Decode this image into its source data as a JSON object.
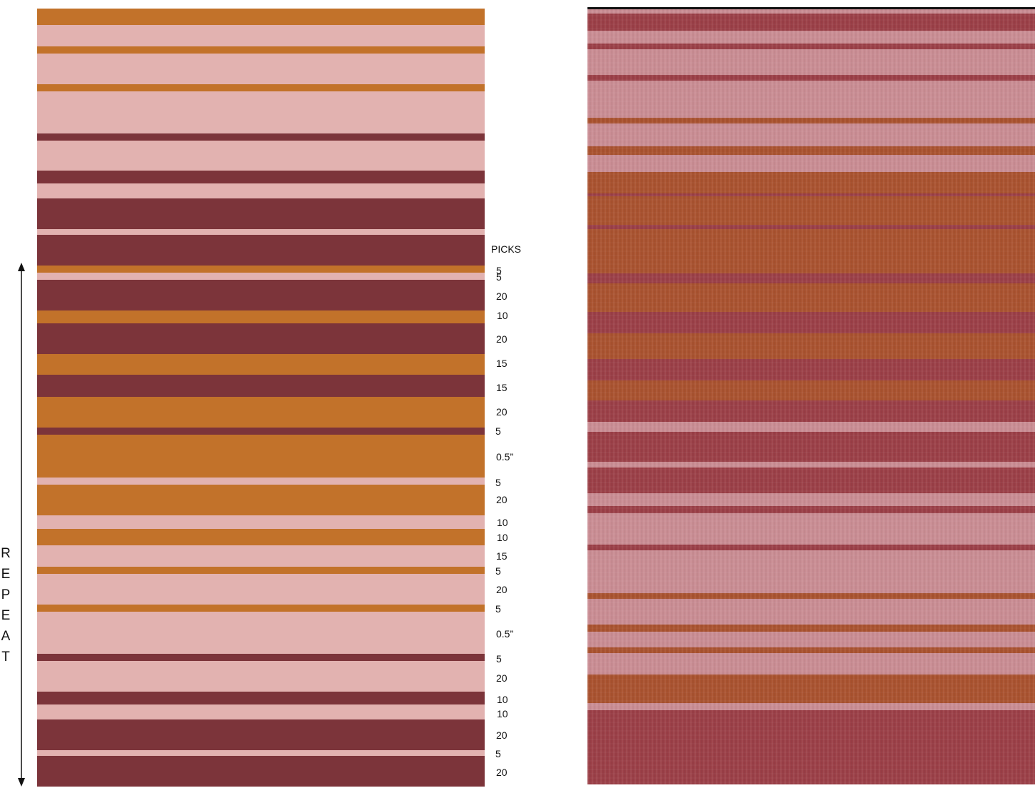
{
  "colors": {
    "orange": "#c2722a",
    "pink": "#e2b2b0",
    "maroon": "#7c343a",
    "fabric_base": "#9b3f47",
    "fabric_pink": "#c98c93",
    "fabric_orange": "#a9522f"
  },
  "labels": {
    "picks_header": "PICKS",
    "repeat_letters": [
      "R",
      "E",
      "P",
      "E",
      "A",
      "T"
    ]
  },
  "pick_counts": [
    "5",
    "5",
    "20",
    "10",
    "20",
    "15",
    "15",
    "20",
    "5",
    "0.5”",
    "5",
    "20",
    "10",
    "10",
    "15",
    "5",
    "20",
    "5",
    "0.5”",
    "5",
    "20",
    "10",
    "10",
    "20",
    "5",
    "20"
  ],
  "stripe_sequence": [
    {
      "color": "orange",
      "span": 23
    },
    {
      "color": "pink",
      "span": 30
    },
    {
      "color": "orange",
      "span": 10
    },
    {
      "color": "pink",
      "span": 43
    },
    {
      "color": "orange",
      "span": 10
    },
    {
      "color": "pink",
      "span": 59
    },
    {
      "color": "maroon",
      "span": 10
    },
    {
      "color": "pink",
      "span": 42
    },
    {
      "color": "maroon",
      "span": 18
    },
    {
      "color": "pink",
      "span": 21
    },
    {
      "color": "maroon",
      "span": 43
    },
    {
      "color": "pink",
      "span": 8
    },
    {
      "color": "maroon",
      "span": 43
    },
    {
      "color": "orange",
      "span": 10
    },
    {
      "color": "pink",
      "span": 10
    },
    {
      "color": "maroon",
      "span": 43
    },
    {
      "color": "orange",
      "span": 18
    },
    {
      "color": "maroon",
      "span": 43
    },
    {
      "color": "orange",
      "span": 29
    },
    {
      "color": "maroon",
      "span": 31
    },
    {
      "color": "orange",
      "span": 43
    },
    {
      "color": "maroon",
      "span": 10
    },
    {
      "color": "orange",
      "span": 60
    },
    {
      "color": "pink",
      "span": 10
    },
    {
      "color": "orange",
      "span": 43
    },
    {
      "color": "pink",
      "span": 19
    },
    {
      "color": "orange",
      "span": 23
    },
    {
      "color": "pink",
      "span": 30
    },
    {
      "color": "orange",
      "span": 10
    },
    {
      "color": "pink",
      "span": 43
    },
    {
      "color": "orange",
      "span": 10
    },
    {
      "color": "pink",
      "span": 59
    },
    {
      "color": "maroon",
      "span": 10
    },
    {
      "color": "pink",
      "span": 43
    },
    {
      "color": "maroon",
      "span": 18
    },
    {
      "color": "pink",
      "span": 21
    },
    {
      "color": "maroon",
      "span": 43
    },
    {
      "color": "pink",
      "span": 8
    },
    {
      "color": "maroon",
      "span": 43
    }
  ],
  "fabric_stripes": [
    {
      "color": "fabric_pink",
      "span": 6
    },
    {
      "color": "fabric_base",
      "span": 24
    },
    {
      "color": "fabric_pink",
      "span": 18
    },
    {
      "color": "fabric_base",
      "span": 8
    },
    {
      "color": "fabric_pink",
      "span": 36
    },
    {
      "color": "fabric_base",
      "span": 8
    },
    {
      "color": "fabric_pink",
      "span": 52
    },
    {
      "color": "fabric_orange",
      "span": 8
    },
    {
      "color": "fabric_pink",
      "span": 32
    },
    {
      "color": "fabric_orange",
      "span": 12
    },
    {
      "color": "fabric_pink",
      "span": 24
    },
    {
      "color": "fabric_orange",
      "span": 30
    },
    {
      "color": "fabric_base",
      "span": 4
    },
    {
      "color": "fabric_orange",
      "span": 40
    },
    {
      "color": "fabric_base",
      "span": 6
    },
    {
      "color": "fabric_orange",
      "span": 62
    },
    {
      "color": "fabric_base",
      "span": 14
    },
    {
      "color": "fabric_orange",
      "span": 40
    },
    {
      "color": "fabric_base",
      "span": 30
    },
    {
      "color": "fabric_orange",
      "span": 36
    },
    {
      "color": "fabric_base",
      "span": 30
    },
    {
      "color": "fabric_orange",
      "span": 28
    },
    {
      "color": "fabric_base",
      "span": 30
    },
    {
      "color": "fabric_pink",
      "span": 14
    },
    {
      "color": "fabric_base",
      "span": 42
    },
    {
      "color": "fabric_pink",
      "span": 8
    },
    {
      "color": "fabric_base",
      "span": 36
    },
    {
      "color": "fabric_pink",
      "span": 18
    },
    {
      "color": "fabric_base",
      "span": 10
    },
    {
      "color": "fabric_pink",
      "span": 44
    },
    {
      "color": "fabric_base",
      "span": 8
    },
    {
      "color": "fabric_pink",
      "span": 60
    },
    {
      "color": "fabric_orange",
      "span": 8
    },
    {
      "color": "fabric_pink",
      "span": 36
    },
    {
      "color": "fabric_orange",
      "span": 10
    },
    {
      "color": "fabric_pink",
      "span": 22
    },
    {
      "color": "fabric_orange",
      "span": 8
    },
    {
      "color": "fabric_pink",
      "span": 30
    },
    {
      "color": "fabric_orange",
      "span": 40
    },
    {
      "color": "fabric_pink",
      "span": 10
    },
    {
      "color": "fabric_base",
      "span": 44
    }
  ]
}
